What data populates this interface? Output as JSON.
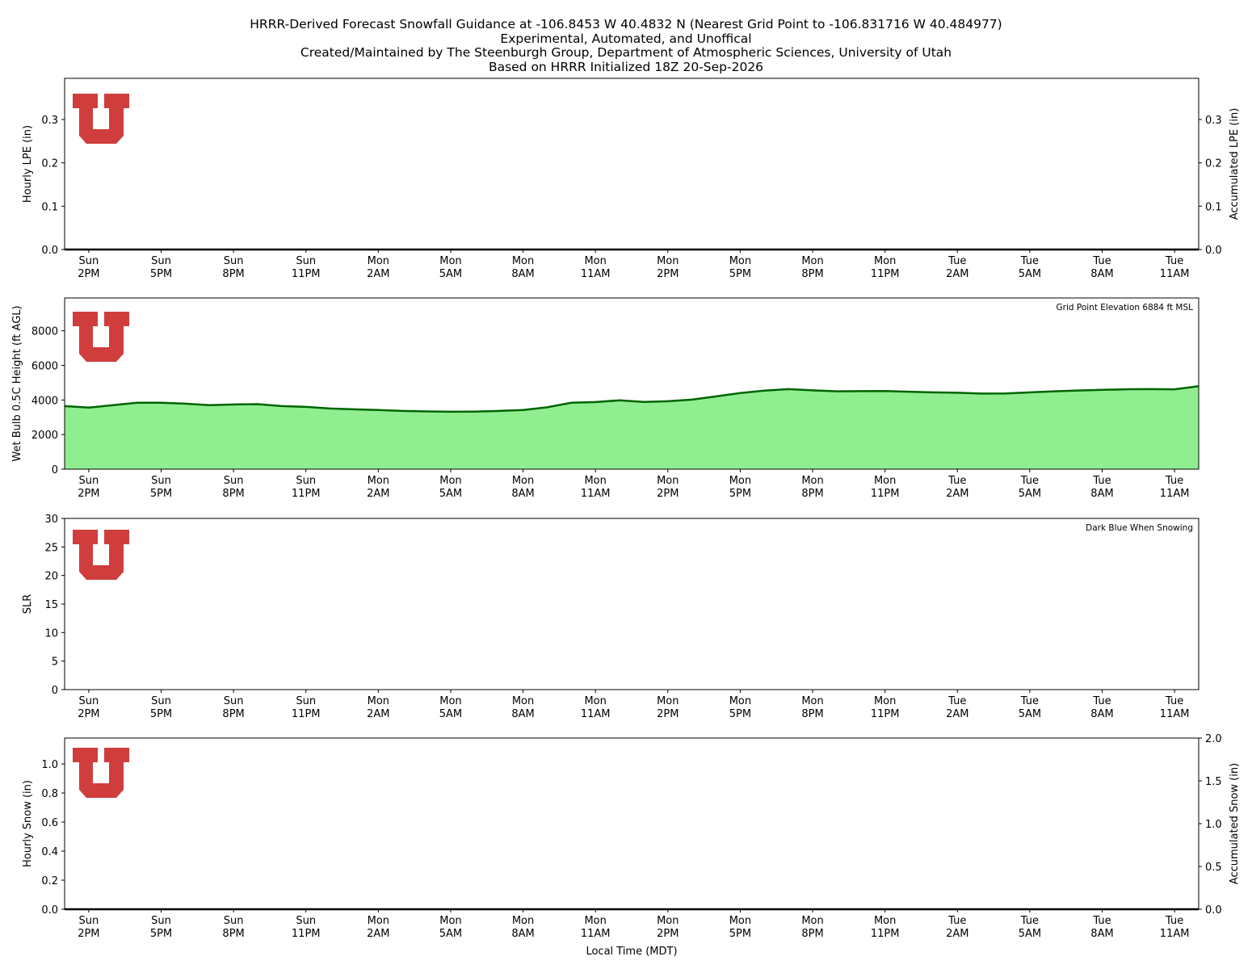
{
  "suptitle": [
    "HRRR-Derived Forecast Snowfall Guidance at -106.8453 W 40.4832 N (Nearest Grid Point to -106.831716 W 40.484977)",
    "Experimental, Automated, and Unoffical",
    "Created/Maintained by The Steenburgh Group, Department of Atmospheric Sciences, University of Utah",
    "Based on HRRR Initialized 18Z 20-Sep-2026"
  ],
  "chart_data": [
    {
      "type": "line",
      "ylabel": "Hourly LPE (in)",
      "y2label": "Accumulated LPE (in)",
      "categories": [
        null,
        "Sun\n2PM",
        null,
        null,
        "Sun\n5PM",
        null,
        null,
        "Sun\n8PM",
        null,
        null,
        "Sun\n11PM",
        null,
        null,
        "Mon\n2AM",
        null,
        null,
        "Mon\n5AM",
        null,
        null,
        "Mon\n8AM",
        null,
        null,
        "Mon\n11AM",
        null,
        null,
        "Mon\n2PM",
        null,
        null,
        "Mon\n5PM",
        null,
        null,
        "Mon\n8PM",
        null,
        null,
        "Mon\n11PM",
        null,
        null,
        "Tue\n2AM",
        null,
        null,
        "Tue\n5AM",
        null,
        null,
        "Tue\n8AM",
        null,
        null,
        "Tue\n11AM",
        null
      ],
      "ylim": [
        0,
        0.395
      ],
      "yticks": [
        {
          "value": 0,
          "label": "0.0"
        },
        0.1,
        0.2,
        0.3
      ],
      "y2lim": [
        0,
        0.395
      ],
      "y2ticks": [
        {
          "value": 0,
          "label": "0.0"
        },
        0.1,
        0.2,
        0.3
      ],
      "series": [
        {
          "color": "#000000",
          "axis": "y2",
          "values": [
            0,
            0,
            0,
            0,
            0,
            0,
            0,
            0,
            0,
            0,
            0,
            0,
            0,
            0,
            0,
            0,
            0,
            0,
            0,
            0,
            0,
            0,
            0,
            0,
            0,
            0,
            0,
            0,
            0,
            0,
            0,
            0,
            0,
            0,
            0,
            0,
            0,
            0,
            0,
            0,
            0,
            0,
            0,
            0,
            0,
            0,
            0,
            0
          ]
        }
      ]
    },
    {
      "type": "area",
      "ylabel": "Wet Bulb 0.5C Height (ft AGL)",
      "annotation": "Grid Point Elevation 6884 ft MSL",
      "categories": [
        null,
        "Sun\n2PM",
        null,
        null,
        "Sun\n5PM",
        null,
        null,
        "Sun\n8PM",
        null,
        null,
        "Sun\n11PM",
        null,
        null,
        "Mon\n2AM",
        null,
        null,
        "Mon\n5AM",
        null,
        null,
        "Mon\n8AM",
        null,
        null,
        "Mon\n11AM",
        null,
        null,
        "Mon\n2PM",
        null,
        null,
        "Mon\n5PM",
        null,
        null,
        "Mon\n8PM",
        null,
        null,
        "Mon\n11PM",
        null,
        null,
        "Tue\n2AM",
        null,
        null,
        "Tue\n5AM",
        null,
        null,
        "Tue\n8AM",
        null,
        null,
        "Tue\n11AM",
        null
      ],
      "ylim": [
        0,
        9900
      ],
      "yticks": [
        0,
        2000,
        4000,
        6000,
        8000
      ],
      "series": [
        {
          "color": "#006400",
          "fill": "#90ee90",
          "values": [
            3650,
            3560,
            3700,
            3840,
            3840,
            3790,
            3700,
            3740,
            3760,
            3650,
            3600,
            3510,
            3460,
            3420,
            3370,
            3340,
            3320,
            3330,
            3370,
            3420,
            3580,
            3840,
            3880,
            3980,
            3890,
            3930,
            4020,
            4210,
            4400,
            4540,
            4630,
            4560,
            4500,
            4510,
            4520,
            4480,
            4440,
            4420,
            4370,
            4380,
            4440,
            4500,
            4550,
            4590,
            4620,
            4630,
            4620,
            4800
          ]
        }
      ]
    },
    {
      "type": "line",
      "ylabel": "SLR",
      "annotation": "Dark Blue When Snowing",
      "categories": [
        null,
        "Sun\n2PM",
        null,
        null,
        "Sun\n5PM",
        null,
        null,
        "Sun\n8PM",
        null,
        null,
        "Sun\n11PM",
        null,
        null,
        "Mon\n2AM",
        null,
        null,
        "Mon\n5AM",
        null,
        null,
        "Mon\n8AM",
        null,
        null,
        "Mon\n11AM",
        null,
        null,
        "Mon\n2PM",
        null,
        null,
        "Mon\n5PM",
        null,
        null,
        "Mon\n8PM",
        null,
        null,
        "Mon\n11PM",
        null,
        null,
        "Tue\n2AM",
        null,
        null,
        "Tue\n5AM",
        null,
        null,
        "Tue\n8AM",
        null,
        null,
        "Tue\n11AM",
        null
      ],
      "ylim": [
        0,
        30
      ],
      "yticks": [
        0,
        5,
        10,
        15,
        20,
        25,
        30
      ],
      "series": []
    },
    {
      "type": "line",
      "ylabel": "Hourly Snow (in)",
      "y2label": "Accumulated Snow (in)",
      "xlabel": "Local Time (MDT)",
      "categories": [
        null,
        "Sun\n2PM",
        null,
        null,
        "Sun\n5PM",
        null,
        null,
        "Sun\n8PM",
        null,
        null,
        "Sun\n11PM",
        null,
        null,
        "Mon\n2AM",
        null,
        null,
        "Mon\n5AM",
        null,
        null,
        "Mon\n8AM",
        null,
        null,
        "Mon\n11AM",
        null,
        null,
        "Mon\n2PM",
        null,
        null,
        "Mon\n5PM",
        null,
        null,
        "Mon\n8PM",
        null,
        null,
        "Mon\n11PM",
        null,
        null,
        "Tue\n2AM",
        null,
        null,
        "Tue\n5AM",
        null,
        null,
        "Tue\n8AM",
        null,
        null,
        "Tue\n11AM",
        null
      ],
      "ylim": [
        0,
        1.178
      ],
      "yticks": [
        {
          "value": 0,
          "label": "0.0"
        },
        0.2,
        0.4,
        0.6,
        0.8,
        {
          "value": 1,
          "label": "1.0"
        }
      ],
      "y2lim": [
        0,
        2
      ],
      "y2ticks": [
        {
          "value": 0,
          "label": "0.0"
        },
        0.5,
        {
          "value": 1,
          "label": "1.0"
        },
        1.5,
        {
          "value": 2,
          "label": "2.0"
        }
      ],
      "series": [
        {
          "color": "#000000",
          "axis": "y2",
          "values": [
            0,
            0,
            0,
            0,
            0,
            0,
            0,
            0,
            0,
            0,
            0,
            0,
            0,
            0,
            0,
            0,
            0,
            0,
            0,
            0,
            0,
            0,
            0,
            0,
            0,
            0,
            0,
            0,
            0,
            0,
            0,
            0,
            0,
            0,
            0,
            0,
            0,
            0,
            0,
            0,
            0,
            0,
            0,
            0,
            0,
            0,
            0,
            0
          ]
        }
      ]
    }
  ]
}
